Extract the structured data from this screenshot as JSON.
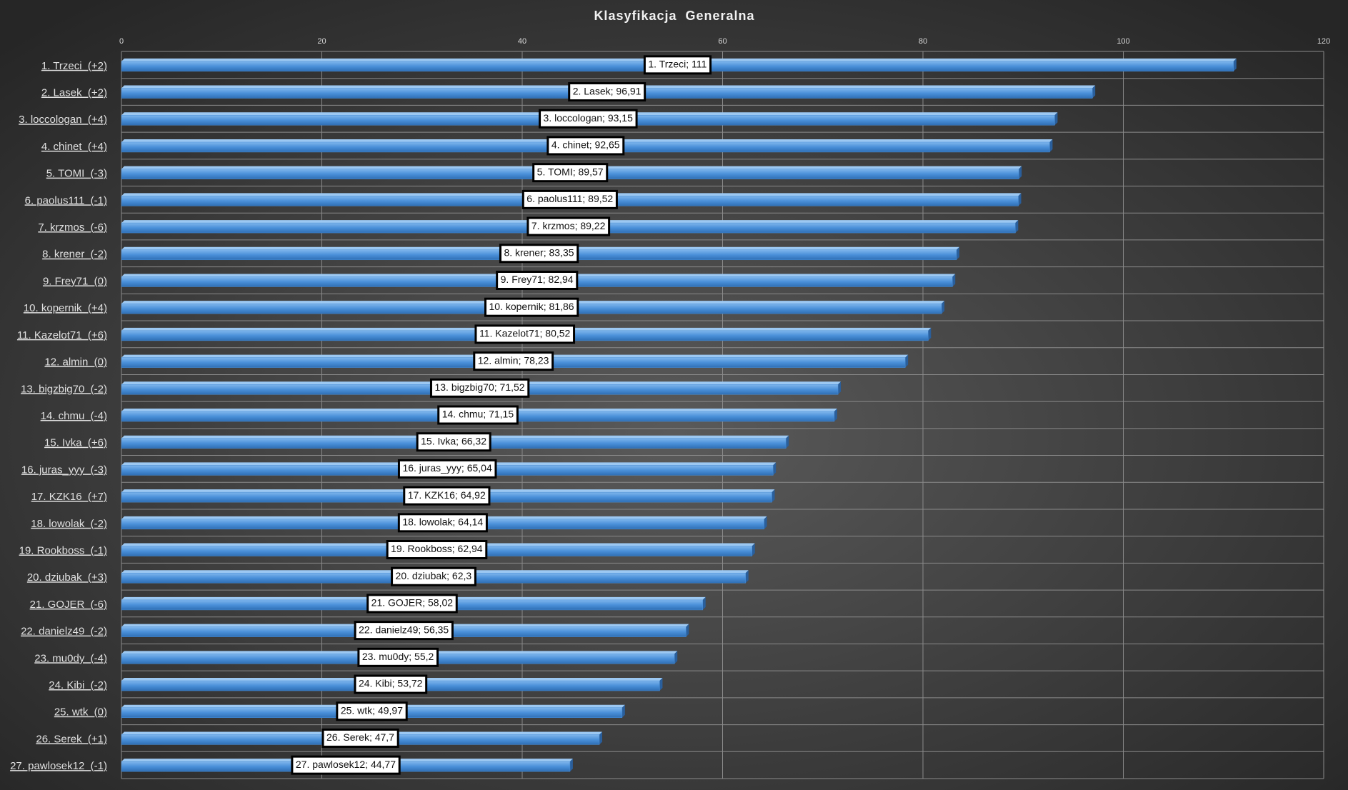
{
  "chart_data": {
    "type": "bar",
    "orientation": "horizontal",
    "title": "Klasyfikacja  Generalna",
    "categories": [
      "1. Trzeci  (+2)",
      "2. Lasek  (+2)",
      "3. loccologan  (+4)",
      "4. chinet  (+4)",
      "5. TOMI  (-3)",
      "6. paolus111  (-1)",
      "7. krzmos  (-6)",
      "8. krener  (-2)",
      "9. Frey71  (0)",
      "10. kopernik  (+4)",
      "11. Kazelot71  (+6)",
      "12. almin  (0)",
      "13. bigzbig70  (-2)",
      "14. chmu  (-4)",
      "15. Ivka  (+6)",
      "16. juras_yyy  (-3)",
      "17. KZK16  (+7)",
      "18. lowolak  (-2)",
      "19. Rookboss  (-1)",
      "20. dziubak  (+3)",
      "21. GOJER  (-6)",
      "22. danielz49  (-2)",
      "23. mu0dy  (-4)",
      "24. Kibi  (-2)",
      "25. wtk  (0)",
      "26. Serek  (+1)",
      "27. pawlosek12  (-1)"
    ],
    "values": [
      111,
      96.91,
      93.15,
      92.65,
      89.57,
      89.52,
      89.22,
      83.35,
      82.94,
      81.86,
      80.52,
      78.23,
      71.52,
      71.15,
      66.32,
      65.04,
      64.92,
      64.14,
      62.94,
      62.3,
      58.02,
      56.35,
      55.2,
      53.72,
      49.97,
      47.7,
      44.77
    ],
    "value_labels": [
      "1. Trzeci; 111",
      "2. Lasek; 96,91",
      "3. loccologan; 93,15",
      "4. chinet; 92,65",
      "5. TOMI; 89,57",
      "6. paolus111; 89,52",
      "7. krzmos; 89,22",
      "8. krener; 83,35",
      "9. Frey71; 82,94",
      "10. kopernik; 81,86",
      "11. Kazelot71; 80,52",
      "12. almin; 78,23",
      "13. bigzbig70; 71,52",
      "14. chmu; 71,15",
      "15. Ivka; 66,32",
      "16. juras_yyy; 65,04",
      "17. KZK16; 64,92",
      "18. lowolak; 64,14",
      "19. Rookboss; 62,94",
      "20. dziubak; 62,3",
      "21. GOJER; 58,02",
      "22. danielz49; 56,35",
      "23. mu0dy; 55,2",
      "24. Kibi; 53,72",
      "25. wtk; 49,97",
      "26. Serek; 47,7",
      "27. pawlosek12; 44,77"
    ],
    "color": "#4a90d9",
    "xlim": [
      0,
      120
    ],
    "xticks": [
      0,
      20,
      40,
      60,
      80,
      100,
      120
    ],
    "grid": true
  }
}
